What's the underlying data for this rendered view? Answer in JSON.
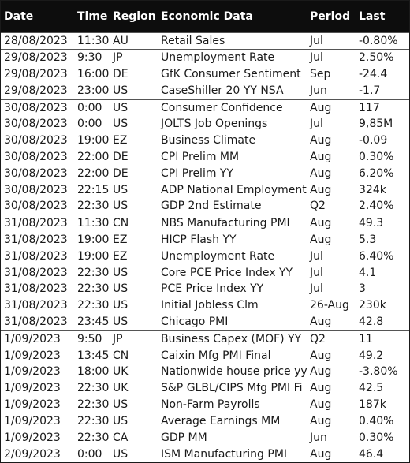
{
  "headers": {
    "date": "Date",
    "time": "Time",
    "region": "Region",
    "economic_data": "Economic Data",
    "period": "Period",
    "last": "Last"
  },
  "rows": [
    {
      "date": "28/08/2023",
      "time": "11:30",
      "region": "AU",
      "data": "Retail Sales",
      "period": "Jul",
      "last": "-0.80%",
      "group_start": true
    },
    {
      "date": "29/08/2023",
      "time": "9:30",
      "region": "JP",
      "data": "Unemployment Rate",
      "period": "Jul",
      "last": "2.50%",
      "group_start": true
    },
    {
      "date": "29/08/2023",
      "time": "16:00",
      "region": "DE",
      "data": "GfK Consumer Sentiment",
      "period": "Sep",
      "last": "-24.4",
      "group_start": false
    },
    {
      "date": "29/08/2023",
      "time": "23:00",
      "region": "US",
      "data": "CaseShiller 20 YY NSA",
      "period": "Jun",
      "last": "-1.7",
      "group_start": false
    },
    {
      "date": "30/08/2023",
      "time": "0:00",
      "region": "US",
      "data": "Consumer Confidence",
      "period": "Aug",
      "last": "117",
      "group_start": true
    },
    {
      "date": "30/08/2023",
      "time": "0:00",
      "region": "US",
      "data": "JOLTS Job Openings",
      "period": "Jul",
      "last": "9,85M",
      "group_start": false
    },
    {
      "date": "30/08/2023",
      "time": "19:00",
      "region": "EZ",
      "data": "Business Climate",
      "period": "Aug",
      "last": "-0.09",
      "group_start": false
    },
    {
      "date": "30/08/2023",
      "time": "22:00",
      "region": "DE",
      "data": "CPI Prelim MM",
      "period": "Aug",
      "last": "0.30%",
      "group_start": false
    },
    {
      "date": "30/08/2023",
      "time": "22:00",
      "region": "DE",
      "data": "CPI Prelim YY",
      "period": "Aug",
      "last": "6.20%",
      "group_start": false
    },
    {
      "date": "30/08/2023",
      "time": "22:15",
      "region": "US",
      "data": "ADP National Employment",
      "period": "Aug",
      "last": "324k",
      "group_start": false
    },
    {
      "date": "30/08/2023",
      "time": "22:30",
      "region": "US",
      "data": "GDP 2nd Estimate",
      "period": "Q2",
      "last": "2.40%",
      "group_start": false
    },
    {
      "date": "31/08/2023",
      "time": "11:30",
      "region": "CN",
      "data": "NBS Manufacturing PMI",
      "period": "Aug",
      "last": "49.3",
      "group_start": true
    },
    {
      "date": "31/08/2023",
      "time": "19:00",
      "region": "EZ",
      "data": "HICP Flash YY",
      "period": "Aug",
      "last": "5.3",
      "group_start": false
    },
    {
      "date": "31/08/2023",
      "time": "19:00",
      "region": "EZ",
      "data": "Unemployment Rate",
      "period": "Jul",
      "last": "6.40%",
      "group_start": false
    },
    {
      "date": "31/08/2023",
      "time": "22:30",
      "region": "US",
      "data": "Core PCE Price Index YY",
      "period": "Jul",
      "last": "4.1",
      "group_start": false
    },
    {
      "date": "31/08/2023",
      "time": "22:30",
      "region": "US",
      "data": "PCE Price Index YY",
      "period": "Jul",
      "last": "3",
      "group_start": false
    },
    {
      "date": "31/08/2023",
      "time": "22:30",
      "region": "US",
      "data": "Initial Jobless Clm",
      "period": "26-Aug",
      "last": "230k",
      "group_start": false
    },
    {
      "date": "31/08/2023",
      "time": "23:45",
      "region": "US",
      "data": "Chicago PMI",
      "period": "Aug",
      "last": "42.8",
      "group_start": false
    },
    {
      "date": "1/09/2023",
      "time": "9:50",
      "region": "JP",
      "data": "Business Capex (MOF) YY",
      "period": "Q2",
      "last": "11",
      "group_start": true
    },
    {
      "date": "1/09/2023",
      "time": "13:45",
      "region": "CN",
      "data": "Caixin Mfg PMI Final",
      "period": "Aug",
      "last": "49.2",
      "group_start": false
    },
    {
      "date": "1/09/2023",
      "time": "18:00",
      "region": "UK",
      "data": "Nationwide house price yy",
      "period": "Aug",
      "last": "-3.80%",
      "group_start": false
    },
    {
      "date": "1/09/2023",
      "time": "22:30",
      "region": "UK",
      "data": "S&P GLBL/CIPS Mfg PMI Fi",
      "period": "Aug",
      "last": "42.5",
      "group_start": false
    },
    {
      "date": "1/09/2023",
      "time": "22:30",
      "region": "US",
      "data": "Non-Farm Payrolls",
      "period": "Aug",
      "last": "187k",
      "group_start": false
    },
    {
      "date": "1/09/2023",
      "time": "22:30",
      "region": "US",
      "data": "Average Earnings MM",
      "period": "Aug",
      "last": "0.40%",
      "group_start": false
    },
    {
      "date": "1/09/2023",
      "time": "22:30",
      "region": "CA",
      "data": "GDP MM",
      "period": "Jun",
      "last": "0.30%",
      "group_start": false
    },
    {
      "date": "2/09/2023",
      "time": "0:00",
      "region": "US",
      "data": "ISM Manufacturing PMI",
      "period": "Aug",
      "last": "46.4",
      "group_start": true
    }
  ]
}
